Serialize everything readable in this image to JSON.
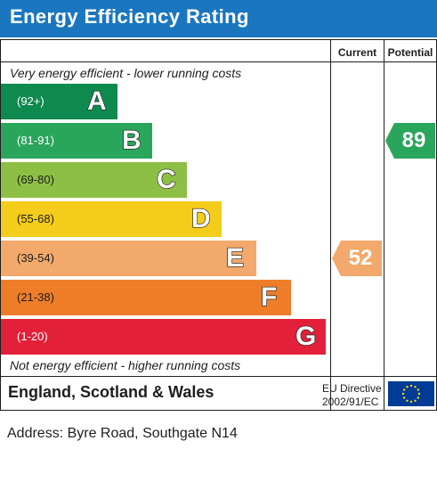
{
  "header": {
    "title": "Energy Efficiency Rating"
  },
  "columns": {
    "current": "Current",
    "potential": "Potential"
  },
  "notes": {
    "top": "Very energy efficient - lower running costs",
    "bottom": "Not energy efficient - higher running costs"
  },
  "chart_data": {
    "type": "bar",
    "title": "Energy Efficiency Rating",
    "categories": [
      "A",
      "B",
      "C",
      "D",
      "E",
      "F",
      "G"
    ],
    "ranges": [
      "(92+)",
      "(81-91)",
      "(69-80)",
      "(55-68)",
      "(39-54)",
      "(21-38)",
      "(1-20)"
    ],
    "colors": [
      "#0f8a4f",
      "#2aa65c",
      "#8dbf45",
      "#f4cc1b",
      "#f2a96b",
      "#ee7d2a",
      "#e2203a"
    ],
    "current": {
      "value": 52,
      "band": "E",
      "color": "#f2a96b"
    },
    "potential": {
      "value": 89,
      "band": "B",
      "color": "#2aa65c"
    }
  },
  "footer": {
    "region": "England, Scotland & Wales",
    "eu_line1": "EU Directive",
    "eu_line2": "2002/91/EC"
  },
  "address": "Address: Byre Road, Southgate N14"
}
